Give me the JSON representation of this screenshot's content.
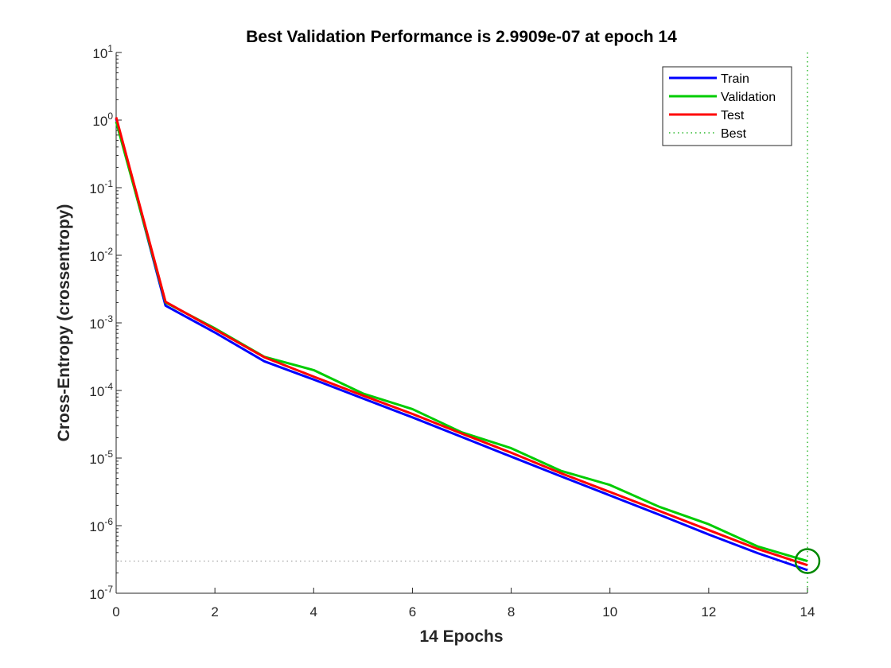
{
  "chart_data": {
    "type": "line",
    "title": "Best Validation Performance is 2.9909e-07 at epoch 14",
    "xlabel": "14 Epochs",
    "ylabel": "Cross-Entropy  (crossentropy)",
    "xlim": [
      0,
      14
    ],
    "ylim": [
      1e-07,
      10
    ],
    "yscale": "log",
    "x_ticks": [
      "0",
      "2",
      "4",
      "6",
      "8",
      "10",
      "12",
      "14"
    ],
    "y_ticks": [
      {
        "base": "10",
        "exp": "1"
      },
      {
        "base": "10",
        "exp": "0"
      },
      {
        "base": "10",
        "exp": "-1"
      },
      {
        "base": "10",
        "exp": "-2"
      },
      {
        "base": "10",
        "exp": "-3"
      },
      {
        "base": "10",
        "exp": "-4"
      },
      {
        "base": "10",
        "exp": "-5"
      },
      {
        "base": "10",
        "exp": "-6"
      },
      {
        "base": "10",
        "exp": "-7"
      }
    ],
    "grid": false,
    "legend_position": "top-right",
    "x": [
      0,
      1,
      2,
      3,
      4,
      5,
      6,
      7,
      8,
      9,
      10,
      11,
      12,
      13,
      14
    ],
    "series": [
      {
        "name": "Train",
        "color": "#0000ff",
        "style": "solid",
        "values": [
          1.05,
          0.0018,
          0.00072,
          0.00027,
          0.000145,
          7.6e-05,
          4e-05,
          2.05e-05,
          1.05e-05,
          5.4e-06,
          2.8e-06,
          1.45e-06,
          7.4e-07,
          3.9e-07,
          2.2e-07
        ]
      },
      {
        "name": "Validation",
        "color": "#00cc00",
        "style": "solid",
        "values": [
          0.95,
          0.002,
          0.00083,
          0.000315,
          0.0002,
          9e-05,
          5.3e-05,
          2.4e-05,
          1.4e-05,
          6.5e-06,
          4e-06,
          1.9e-06,
          1.05e-06,
          4.9e-07,
          2.9909e-07
        ]
      },
      {
        "name": "Test",
        "color": "#ff0000",
        "style": "solid",
        "values": [
          1.1,
          0.00205,
          0.0008,
          0.00031,
          0.00016,
          8.4e-05,
          4.5e-05,
          2.3e-05,
          1.2e-05,
          6e-06,
          3.15e-06,
          1.65e-06,
          8.6e-07,
          4.5e-07,
          2.6e-07
        ]
      }
    ],
    "best": {
      "name": "Best",
      "epoch": 14,
      "value": 2.9909e-07,
      "color": "#00aa00",
      "style": "dotted"
    },
    "best_guide_color": "#999999"
  }
}
